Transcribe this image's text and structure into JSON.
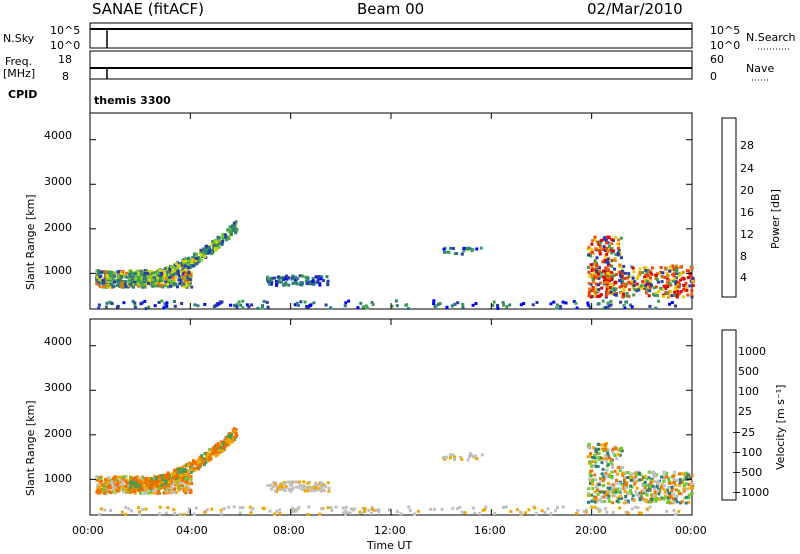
{
  "header": {
    "station": "SANAE (fitACF)",
    "beam": "Beam 00",
    "date": "02/Mar/2010"
  },
  "top_panels": {
    "nsky_label": "N.Sky",
    "nsearch_label": "N.Search",
    "nsearch_style": "dotted",
    "nsky_ticks": [
      "10^5",
      "10^0"
    ],
    "nsearch_ticks": [
      "10^5",
      "10^0"
    ],
    "freq_label": "Freq.",
    "freq_unit": "[MHz]",
    "freq_ticks": [
      "18",
      "8"
    ],
    "nave_label": "Nave",
    "nave_ticks": [
      "60",
      "0"
    ],
    "nave_style": "dotted",
    "cpid_label": "CPID",
    "cpid_value": "themis 3300"
  },
  "chart_data": [
    {
      "type": "heatmap",
      "name": "power",
      "ylabel": "Slant Range [km]",
      "yticks": [
        1000,
        2000,
        3000,
        4000
      ],
      "ylim": [
        200,
        4600
      ],
      "xlim": [
        0,
        24
      ],
      "colorbar": {
        "label": "Power [dB]",
        "ticks": [
          "28",
          "24",
          "20",
          "16",
          "12",
          "8",
          "4"
        ],
        "colors": [
          "#0000ff",
          "#2a3aa8",
          "#2e7d7d",
          "#3f9e55",
          "#6ccd2c",
          "#e8d000",
          "#f0a800",
          "#f07000",
          "#f04000",
          "#e00000"
        ]
      },
      "regions": [
        {
          "t0": 0.2,
          "t1": 4.0,
          "r0": 700,
          "r1": 1100,
          "value": "mixed"
        },
        {
          "t0": 2.0,
          "t1": 5.9,
          "r0": 900,
          "r1": 2150,
          "value": "mixed"
        },
        {
          "t0": 7.0,
          "t1": 9.5,
          "r0": 750,
          "r1": 1000,
          "value": "low"
        },
        {
          "t0": 14.0,
          "t1": 15.5,
          "r0": 1450,
          "r1": 1600,
          "value": "low"
        },
        {
          "t0": 19.8,
          "t1": 24.0,
          "r0": 500,
          "r1": 1900,
          "value": "high"
        }
      ]
    },
    {
      "type": "heatmap",
      "name": "velocity",
      "ylabel": "Slant Range [km]",
      "yticks": [
        1000,
        2000,
        3000,
        4000
      ],
      "ylim": [
        200,
        4600
      ],
      "xlim": [
        0,
        24
      ],
      "xticks": [
        "00:00",
        "04:00",
        "08:00",
        "12:00",
        "16:00",
        "20:00",
        "00:00"
      ],
      "xlabel": "Time UT",
      "colorbar": {
        "label": "Velocity [m s⁻¹]",
        "ticks": [
          "1000",
          "500",
          "100",
          "25",
          "−25",
          "−100",
          "−500",
          "−1000"
        ],
        "colors": [
          "#2a3aa8",
          "#2e7d7d",
          "#3f9e55",
          "#6ccd2c",
          "#c0c0c0",
          "#f0a800",
          "#f07000",
          "#f04000",
          "#e00000"
        ]
      }
    }
  ]
}
